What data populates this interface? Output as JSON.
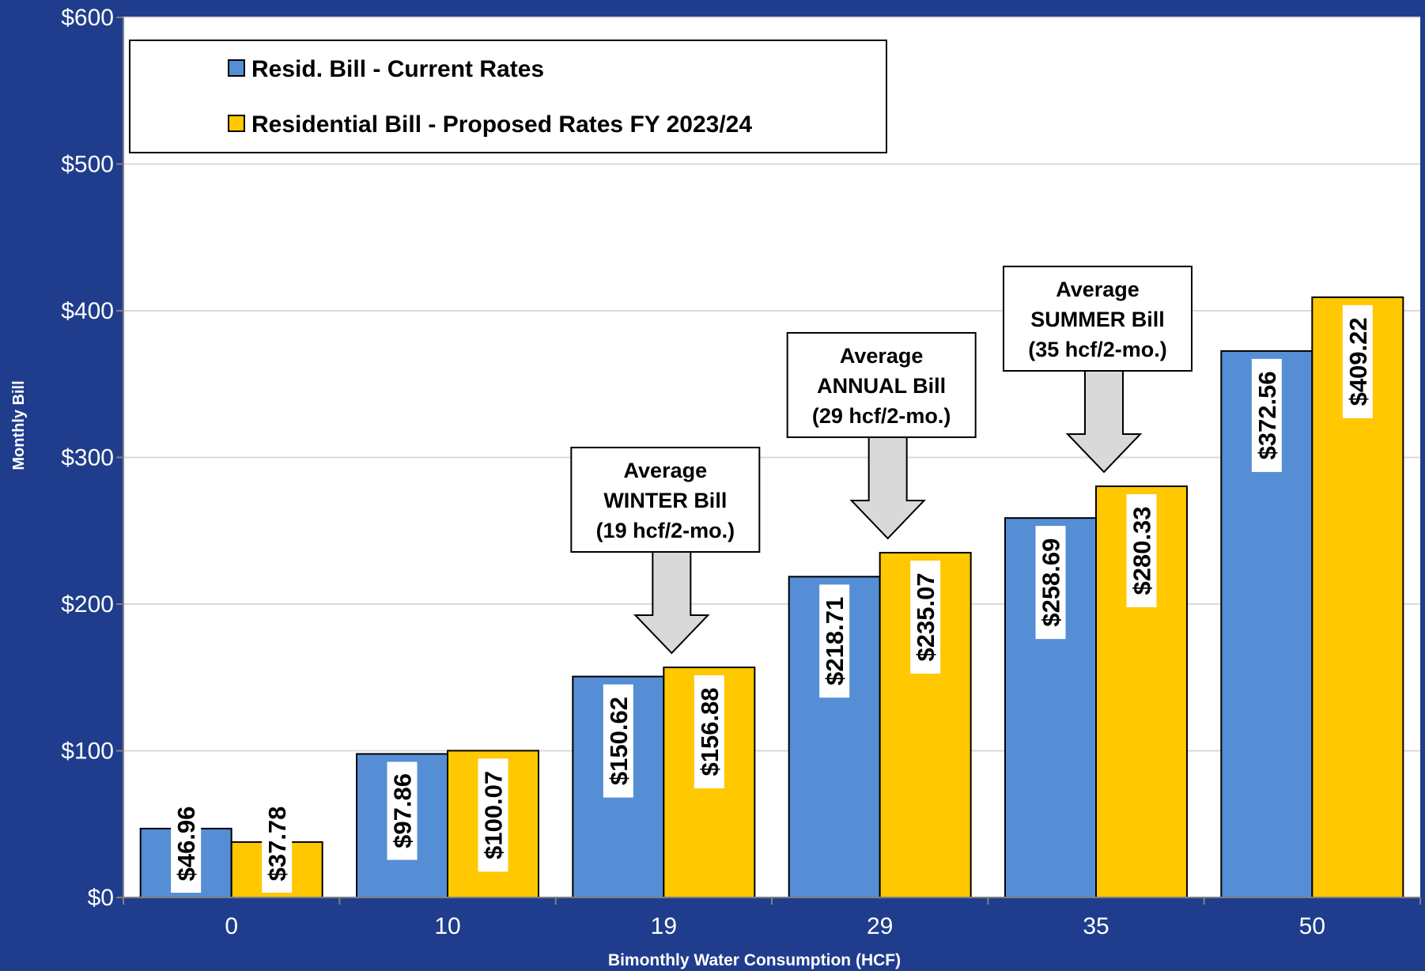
{
  "chart_data": {
    "type": "bar",
    "title": "",
    "xlabel": "Bimonthly Water Consumption (HCF)",
    "ylabel": "Monthly Bill",
    "ylim": [
      0,
      600
    ],
    "yticks": [
      "$0",
      "$100",
      "$200",
      "$300",
      "$400",
      "$500",
      "$600"
    ],
    "ytick_values": [
      0,
      100,
      200,
      300,
      400,
      500,
      600
    ],
    "categories": [
      "0",
      "10",
      "19",
      "29",
      "35",
      "50"
    ],
    "grid": true,
    "legend_position": "top-left",
    "series": [
      {
        "name": "Resid. Bill - Current Rates",
        "color": "#558ed5",
        "values": [
          46.96,
          97.86,
          150.62,
          218.71,
          258.69,
          372.56
        ],
        "labels": [
          "$46.96",
          "$97.86",
          "$150.62",
          "$218.71",
          "$258.69",
          "$372.56"
        ]
      },
      {
        "name": "Residential Bill - Proposed Rates FY 2023/24",
        "color": "#ffc800",
        "values": [
          37.78,
          100.07,
          156.88,
          235.07,
          280.33,
          409.22
        ],
        "labels": [
          "$37.78",
          "$100.07",
          "$156.88",
          "$235.07",
          "$280.33",
          "$409.22"
        ]
      }
    ],
    "annotations": [
      {
        "category": "19",
        "lines": [
          "Average",
          "WINTER Bill",
          "(19 hcf/2-mo.)"
        ]
      },
      {
        "category": "29",
        "lines": [
          "Average",
          "ANNUAL Bill",
          "(29 hcf/2-mo.)"
        ]
      },
      {
        "category": "35",
        "lines": [
          "Average",
          "SUMMER Bill",
          "(35 hcf/2-mo.)"
        ]
      }
    ]
  },
  "colors": {
    "background": "#1f3d8c",
    "plot_area": "#ffffff",
    "gridline": "#d9d9d9",
    "callout_arrow": "#d9d9d9"
  }
}
